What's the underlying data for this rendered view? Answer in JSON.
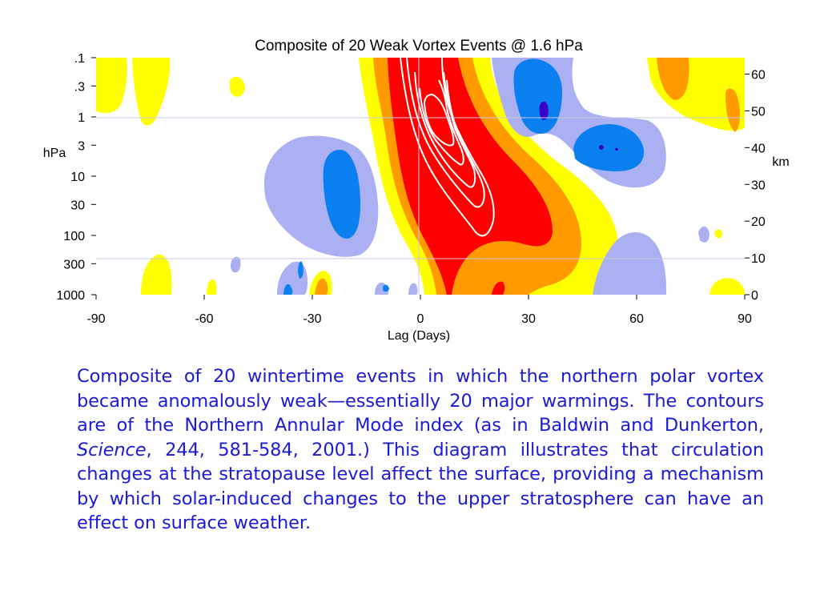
{
  "chart_data": {
    "type": "heatmap",
    "title": "Composite of 20 Weak Vortex Events @ 1.6 hPa",
    "xlabel": "Lag (Days)",
    "ylabel_left": "hPa",
    "ylabel_right": "km",
    "xlim": [
      -90,
      90
    ],
    "x_ticks": [
      -90,
      -60,
      -30,
      0,
      30,
      60,
      90
    ],
    "x_tick_labels": [
      "-90",
      "-60",
      "-30",
      "0",
      "30",
      "60",
      "90"
    ],
    "y_ticks_pressure": [
      ".1",
      ".3",
      "1",
      "3",
      "10",
      "30",
      "100",
      "300",
      "1000"
    ],
    "y_ticks_height": [
      "60",
      "50",
      "40",
      "30",
      "20",
      "10",
      "0"
    ],
    "reference_lines": {
      "x_lag": 0,
      "pressure_hpa": [
        1,
        300
      ]
    },
    "colors": {
      "strong_positive": "#ff0000",
      "positive": "#ff9900",
      "weak_positive": "#ffff00",
      "weak_negative": "#aaaaf0",
      "negative": "#0080f0",
      "strong_negative": "#3300cc",
      "contour": "#ffffff"
    },
    "features": [
      {
        "sign": "positive",
        "center_lag": 5,
        "center_pressure_hpa": 3,
        "extent_lag": [
          -12,
          40
        ],
        "extent_pressure_hpa": [
          0.1,
          1000
        ],
        "peak_level": "strong",
        "contoured": true
      },
      {
        "sign": "negative",
        "center_lag": 35,
        "center_pressure_hpa": 0.3,
        "extent_lag": [
          20,
          55
        ],
        "extent_pressure_hpa": [
          0.1,
          10
        ],
        "peak_level": "strong"
      },
      {
        "sign": "negative",
        "center_lag": 52,
        "center_pressure_hpa": 3,
        "extent_lag": [
          40,
          70
        ],
        "extent_pressure_hpa": [
          1,
          10
        ],
        "peak_level": "strong"
      },
      {
        "sign": "negative",
        "center_lag": -20,
        "center_pressure_hpa": 10,
        "extent_lag": [
          -45,
          0
        ],
        "extent_pressure_hpa": [
          2,
          300
        ],
        "peak_level": "medium"
      },
      {
        "sign": "positive",
        "center_lag": 75,
        "center_pressure_hpa": 0.3,
        "extent_lag": [
          62,
          90
        ],
        "extent_pressure_hpa": [
          0.1,
          1
        ],
        "peak_level": "medium"
      },
      {
        "sign": "positive",
        "center_lag": -82,
        "center_pressure_hpa": 0.3,
        "extent_lag": [
          -90,
          -70
        ],
        "extent_pressure_hpa": [
          0.1,
          1
        ],
        "peak_level": "weak"
      }
    ]
  },
  "caption": {
    "part1": "Composite of 20 wintertime events in which the northern polar vortex became anomalously weak—essentially 20 major warmings. The contours are of the Northern Annular Mode index (as in Baldwin and Dunkerton, ",
    "journal": "Science",
    "part2": ", 244, 581-584, 2001.) This diagram illustrates that circulation changes at the stratopause level affect the surface, providing a mechanism by which solar-induced changes to the upper stratosphere can have an effect on surface weather."
  }
}
